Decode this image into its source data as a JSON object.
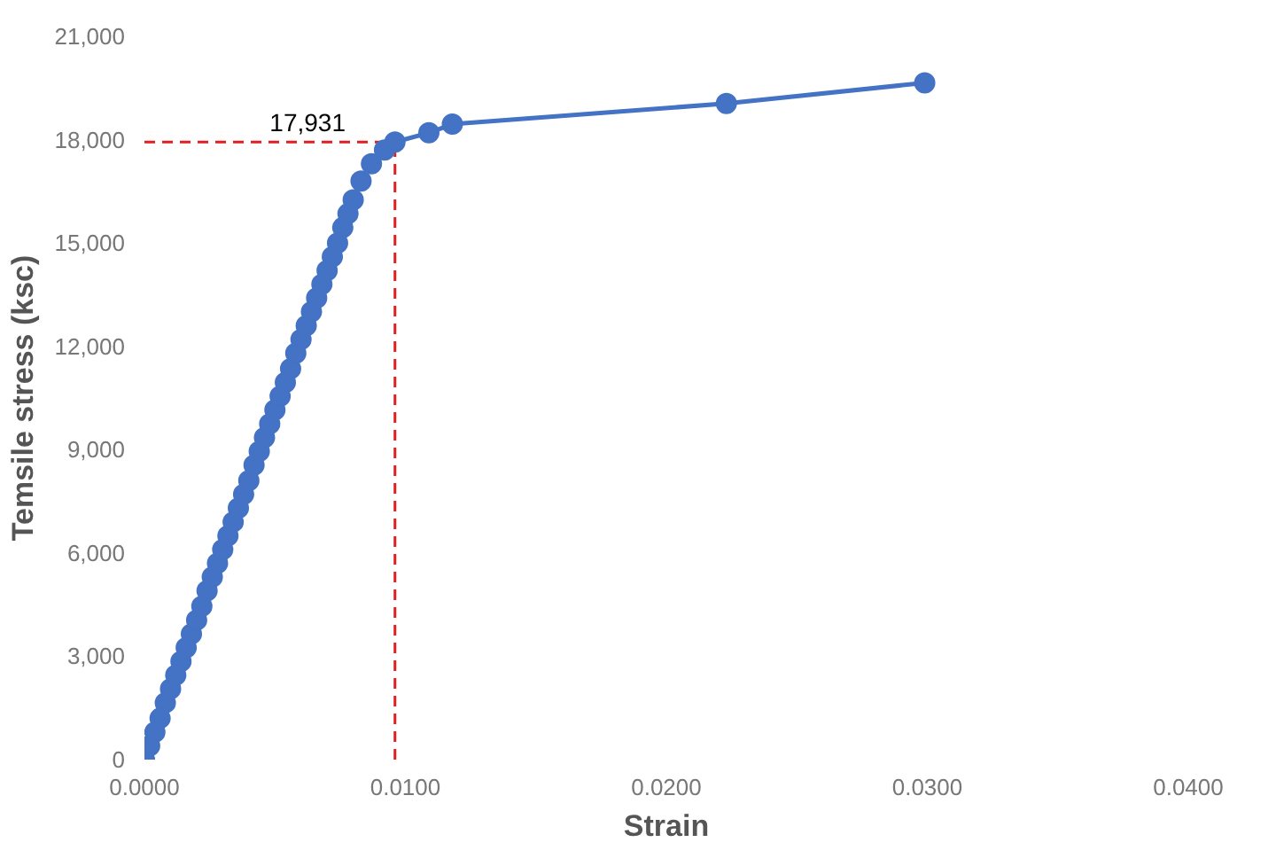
{
  "chart_data": {
    "type": "line",
    "xlabel": "Strain",
    "ylabel": "Temsile stress (ksc)",
    "x": [
      0,
      0.0002,
      0.0004,
      0.0006,
      0.0008,
      0.001,
      0.0012,
      0.0014,
      0.0016,
      0.0018,
      0.002,
      0.0022,
      0.0024,
      0.0026,
      0.0028,
      0.003,
      0.0032,
      0.0034,
      0.0036,
      0.0038,
      0.004,
      0.0042,
      0.0044,
      0.0046,
      0.0048,
      0.005,
      0.0052,
      0.0054,
      0.0056,
      0.0058,
      0.006,
      0.0062,
      0.0064,
      0.0066,
      0.0068,
      0.007,
      0.0072,
      0.0074,
      0.0076,
      0.0078,
      0.008,
      0.0083,
      0.0087,
      0.0092,
      0.0096,
      0.0109,
      0.0118,
      0.0223,
      0.0299
    ],
    "series": [
      {
        "color": "#4472c4",
        "values": [
          0,
          400,
          800,
          1200,
          1650,
          2050,
          2450,
          2850,
          3250,
          3650,
          4050,
          4450,
          4900,
          5300,
          5700,
          6100,
          6500,
          6900,
          7300,
          7700,
          8100,
          8550,
          8950,
          9350,
          9750,
          10150,
          10550,
          10950,
          11350,
          11800,
          12200,
          12600,
          13000,
          13400,
          13800,
          14200,
          14600,
          15000,
          15450,
          15850,
          16250,
          16800,
          17300,
          17700,
          17931,
          18200,
          18450,
          19050,
          19650
        ]
      }
    ],
    "marker": "circle",
    "line_style": "solid",
    "xlim": [
      0,
      0.04
    ],
    "xticks": [
      {
        "value": 0,
        "label": "0.0000"
      },
      {
        "value": 0.01,
        "label": "0.0100"
      },
      {
        "value": 0.02,
        "label": "0.0200"
      },
      {
        "value": 0.03,
        "label": "0.0300"
      },
      {
        "value": 0.04,
        "label": "0.0400"
      }
    ],
    "ylim": [
      0,
      21000
    ],
    "yticks": [
      {
        "value": 0,
        "label": "0"
      },
      {
        "value": 3000,
        "label": "3,000"
      },
      {
        "value": 6000,
        "label": "6,000"
      },
      {
        "value": 9000,
        "label": "9,000"
      },
      {
        "value": 12000,
        "label": "12,000"
      },
      {
        "value": 15000,
        "label": "15,000"
      },
      {
        "value": 18000,
        "label": "18,000"
      },
      {
        "value": 21000,
        "label": "21,000"
      }
    ],
    "ref_lines": [
      {
        "axis": "y",
        "value": 17931,
        "label": "17,931",
        "color": "#e02020",
        "line_style": "dashed"
      },
      {
        "axis": "x",
        "value": 0.0096,
        "color": "#e02020",
        "line_style": "dashed"
      }
    ],
    "grid": false
  }
}
